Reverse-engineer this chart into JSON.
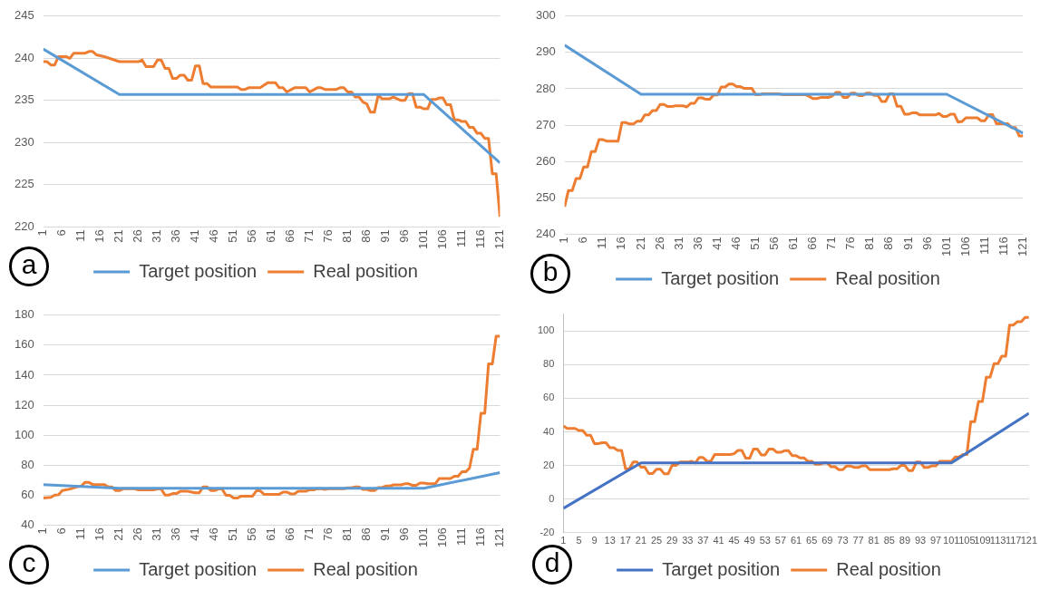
{
  "chart_data": [
    {
      "type": "line",
      "annotations": [
        "a"
      ],
      "legend": "bottom",
      "grid": "y",
      "xlim": [
        1,
        121
      ],
      "xticks": [
        1,
        6,
        11,
        16,
        21,
        26,
        31,
        36,
        41,
        46,
        51,
        56,
        61,
        66,
        71,
        76,
        81,
        86,
        91,
        96,
        101,
        106,
        111,
        116,
        121
      ],
      "ylim": [
        220,
        245
      ],
      "yticks": [
        220,
        225,
        230,
        235,
        240,
        245
      ],
      "series": [
        {
          "name": "Target position",
          "color": "#5b9bd5",
          "x": [
            1,
            21,
            101,
            121
          ],
          "values": [
            241.1,
            235.7,
            235.7,
            227.6
          ]
        },
        {
          "name": "Real position",
          "color": "#ed7d31",
          "x": [
            1,
            2,
            3,
            4,
            5,
            7,
            8,
            9,
            12,
            13,
            14,
            15,
            17,
            19,
            21,
            26,
            27,
            28,
            30,
            31,
            32,
            33,
            34,
            35,
            36,
            37,
            38,
            39,
            40,
            41,
            42,
            43,
            44,
            45,
            52,
            53,
            54,
            55,
            58,
            59,
            60,
            62,
            63,
            64,
            65,
            67,
            70,
            71,
            73,
            74,
            75,
            78,
            79,
            80,
            81,
            82,
            83,
            84,
            85,
            86,
            87,
            88,
            89,
            90,
            92,
            93,
            95,
            96,
            97,
            98,
            99,
            100,
            101,
            102,
            103,
            104,
            105,
            106,
            107,
            108,
            109,
            110,
            111,
            112,
            113,
            114,
            115,
            116,
            117,
            118,
            119,
            120,
            121
          ],
          "values": [
            239.6,
            239.6,
            239.2,
            239.2,
            240.2,
            240.2,
            240.0,
            240.6,
            240.6,
            240.8,
            240.8,
            240.4,
            240.2,
            239.9,
            239.6,
            239.6,
            239.8,
            239.0,
            239.0,
            239.8,
            239.8,
            238.8,
            238.8,
            237.6,
            237.6,
            238.0,
            238.0,
            237.4,
            237.4,
            239.1,
            239.1,
            237.0,
            237.0,
            236.6,
            236.6,
            236.3,
            236.3,
            236.5,
            236.5,
            236.8,
            237.1,
            237.1,
            236.5,
            236.5,
            236.0,
            236.5,
            236.5,
            236.0,
            236.5,
            236.5,
            236.3,
            236.3,
            236.5,
            236.5,
            236.0,
            236.0,
            235.4,
            235.4,
            234.8,
            234.6,
            233.6,
            233.6,
            235.6,
            235.2,
            235.2,
            235.4,
            235.0,
            235.0,
            235.8,
            235.8,
            234.2,
            234.2,
            234.0,
            234.0,
            235.1,
            235.1,
            235.3,
            235.3,
            234.5,
            234.5,
            232.7,
            232.7,
            232.5,
            232.5,
            231.8,
            231.8,
            231.1,
            231.1,
            230.5,
            230.5,
            226.3,
            226.3,
            221.2
          ]
        }
      ]
    },
    {
      "type": "line",
      "annotations": [
        "b"
      ],
      "legend": "bottom",
      "grid": "y",
      "xlim": [
        1,
        121
      ],
      "xticks": [
        1,
        6,
        11,
        16,
        21,
        26,
        31,
        36,
        41,
        46,
        51,
        56,
        61,
        66,
        71,
        76,
        81,
        86,
        91,
        96,
        101,
        106,
        111,
        116,
        121
      ],
      "ylim": [
        240,
        300
      ],
      "yticks": [
        240,
        250,
        260,
        270,
        280,
        290,
        300
      ],
      "series": [
        {
          "name": "Target position",
          "color": "#5b9bd5",
          "x": [
            1,
            21,
            101,
            121
          ],
          "values": [
            292,
            278.5,
            278.5,
            267.8
          ]
        },
        {
          "name": "Real position",
          "color": "#ed7d31",
          "x": [
            1,
            2,
            3,
            4,
            5,
            6,
            7,
            8,
            9,
            10,
            11,
            12,
            15,
            16,
            17,
            18,
            19,
            20,
            21,
            22,
            23,
            24,
            25,
            26,
            27,
            28,
            29,
            30,
            32,
            33,
            34,
            35,
            36,
            37,
            38,
            39,
            40,
            41,
            42,
            43,
            44,
            45,
            46,
            47,
            48,
            50,
            51,
            52,
            53,
            57,
            58,
            64,
            65,
            66,
            67,
            68,
            70,
            71,
            72,
            73,
            74,
            75,
            76,
            77,
            78,
            79,
            80,
            81,
            82,
            83,
            84,
            85,
            86,
            87,
            88,
            89,
            90,
            91,
            92,
            93,
            94,
            98,
            99,
            100,
            101,
            102,
            103,
            104,
            105,
            106,
            109,
            110,
            111,
            112,
            113,
            114,
            117,
            118,
            119,
            120,
            121
          ],
          "values": [
            247.5,
            252,
            252,
            255.3,
            255.3,
            258.5,
            258.5,
            262.7,
            262.7,
            266,
            266,
            265.6,
            265.6,
            270.7,
            270.7,
            270.3,
            270.3,
            271.1,
            271.1,
            272.8,
            272.8,
            274,
            274,
            275.7,
            275.7,
            275.1,
            275.1,
            275.3,
            275.3,
            275,
            276,
            276,
            277.5,
            277.5,
            277.1,
            277.1,
            278.3,
            278.3,
            280.5,
            280.5,
            281.3,
            281.3,
            280.6,
            280.6,
            280.1,
            280.1,
            278.4,
            278.4,
            278.6,
            278.6,
            278.4,
            278.4,
            277.9,
            277.3,
            277.3,
            277.6,
            277.6,
            278,
            279,
            279,
            277.6,
            277.6,
            278.8,
            278.8,
            278.1,
            278.1,
            278.8,
            278.8,
            278.2,
            278.2,
            276.5,
            276.5,
            278.6,
            278.6,
            275.2,
            275.2,
            273,
            273,
            273.4,
            273.4,
            272.8,
            272.8,
            273.2,
            272.4,
            272.4,
            273,
            273,
            270.8,
            271,
            272,
            272,
            271.2,
            271.2,
            272.9,
            272.9,
            270.4,
            270.4,
            269.3,
            269.3,
            267,
            267
          ]
        }
      ]
    },
    {
      "type": "line",
      "annotations": [
        "c"
      ],
      "legend": "bottom",
      "grid": "y",
      "xlim": [
        1,
        121
      ],
      "xticks": [
        1,
        6,
        11,
        16,
        21,
        26,
        31,
        36,
        41,
        46,
        51,
        56,
        61,
        66,
        71,
        76,
        81,
        86,
        91,
        96,
        101,
        106,
        111,
        116,
        121
      ],
      "ylim": [
        40,
        180
      ],
      "yticks": [
        40,
        60,
        80,
        100,
        120,
        140,
        160,
        180
      ],
      "series": [
        {
          "name": "Target position",
          "color": "#5b9bd5",
          "x": [
            1,
            21,
            101,
            121
          ],
          "values": [
            67,
            64.5,
            64.5,
            75
          ]
        },
        {
          "name": "Real position",
          "color": "#ed7d31",
          "x": [
            1,
            3,
            4,
            5,
            6,
            8,
            10,
            11,
            12,
            13,
            14,
            17,
            18,
            19,
            20,
            21,
            22,
            25,
            26,
            30,
            31,
            32,
            33,
            34,
            35,
            36,
            37,
            39,
            40,
            41,
            42,
            43,
            44,
            45,
            46,
            47,
            48,
            49,
            50,
            51,
            52,
            53,
            56,
            57,
            58,
            59,
            63,
            64,
            65,
            66,
            67,
            68,
            70,
            71,
            72,
            73,
            74,
            75,
            76,
            80,
            81,
            82,
            83,
            84,
            85,
            86,
            87,
            88,
            89,
            90,
            91,
            92,
            93,
            95,
            96,
            97,
            98,
            99,
            100,
            101,
            102,
            104,
            105,
            108,
            109,
            110,
            111,
            112,
            113,
            114,
            115,
            116,
            117,
            118,
            119,
            120,
            121
          ],
          "values": [
            58,
            58.5,
            60,
            60.2,
            63,
            64,
            65.5,
            66,
            68.5,
            68.5,
            67,
            67,
            65.5,
            65.5,
            63,
            63,
            64.2,
            64.2,
            63.5,
            63.5,
            64,
            64,
            60,
            60,
            61,
            61,
            62.5,
            62.5,
            62,
            61.5,
            61.5,
            65.5,
            65.5,
            63,
            63,
            64,
            64,
            59.8,
            59.8,
            58,
            58,
            59.3,
            59.3,
            62.8,
            62.8,
            60.5,
            60.5,
            62,
            62,
            60.8,
            60.8,
            62.5,
            62.5,
            63.5,
            63.5,
            64.2,
            64.2,
            63.8,
            64.2,
            64.2,
            64.8,
            64.8,
            65.5,
            65.5,
            63.8,
            63.8,
            63,
            63,
            65,
            65,
            66,
            66,
            66.8,
            66.8,
            67.5,
            67.5,
            66.5,
            66.5,
            68,
            68,
            67.5,
            67.5,
            71,
            71,
            72.5,
            72.5,
            75.5,
            75.5,
            78,
            90.5,
            90.5,
            114.5,
            114.5,
            147.5,
            147.5,
            166,
            166
          ]
        }
      ]
    },
    {
      "type": "line",
      "annotations": [
        "d"
      ],
      "legend": "bottom",
      "grid": "y",
      "xlim": [
        1,
        121
      ],
      "xticks": [
        1,
        5,
        9,
        13,
        17,
        21,
        25,
        29,
        33,
        37,
        41,
        45,
        49,
        53,
        57,
        61,
        65,
        69,
        73,
        77,
        81,
        85,
        89,
        93,
        97,
        101,
        105,
        109,
        113,
        117,
        121
      ],
      "ylim": [
        -20,
        110
      ],
      "yticks": [
        -20,
        0,
        20,
        40,
        60,
        80,
        100
      ],
      "series": [
        {
          "name": "Target position",
          "color": "#4472c4",
          "x": [
            1,
            21,
            101,
            121
          ],
          "values": [
            -5.5,
            21.5,
            21.5,
            51
          ]
        },
        {
          "name": "Real position",
          "color": "#ed7d31",
          "x": [
            1,
            2,
            4,
            5,
            6,
            7,
            8,
            9,
            10,
            11,
            12,
            13,
            14,
            15,
            16,
            17,
            18,
            19,
            20,
            21,
            22,
            23,
            24,
            25,
            26,
            27,
            28,
            29,
            30,
            31,
            33,
            34,
            35,
            36,
            37,
            38,
            39,
            40,
            44,
            45,
            46,
            47,
            48,
            49,
            50,
            51,
            52,
            53,
            54,
            55,
            56,
            57,
            58,
            59,
            60,
            61,
            62,
            63,
            64,
            65,
            66,
            67,
            68,
            69,
            70,
            71,
            72,
            73,
            74,
            75,
            76,
            77,
            78,
            79,
            80,
            85,
            86,
            87,
            88,
            89,
            90,
            91,
            92,
            93,
            94,
            95,
            96,
            97,
            98,
            101,
            102,
            103,
            104,
            105,
            106,
            107,
            108,
            109,
            110,
            111,
            112,
            113,
            114,
            115,
            116,
            117,
            118,
            119,
            120,
            121
          ],
          "values": [
            43.5,
            42,
            42,
            40.8,
            40.8,
            38,
            38,
            33,
            33,
            33.5,
            33.5,
            30.5,
            30.5,
            29,
            29,
            18,
            18,
            22,
            22,
            19,
            19,
            15.2,
            15.2,
            17.8,
            17.8,
            15,
            15,
            20,
            20,
            22,
            22,
            22.5,
            21.5,
            24.7,
            24.7,
            22.5,
            22.5,
            26.5,
            26.5,
            27,
            29,
            29,
            24.3,
            24.3,
            29.7,
            29.7,
            26.3,
            26.3,
            29.8,
            29.8,
            27.8,
            27.8,
            28.8,
            28.8,
            25.8,
            25.8,
            24.5,
            24.5,
            22.5,
            22.5,
            20.7,
            20.7,
            21.5,
            21.5,
            19.2,
            19.2,
            17.5,
            17.5,
            19.7,
            19.7,
            18.8,
            18.8,
            19.8,
            19.8,
            17.5,
            17.5,
            18,
            18,
            20,
            20,
            17,
            17,
            22,
            22,
            18.8,
            18.8,
            19.8,
            19.8,
            22.5,
            22.5,
            25,
            25,
            26.5,
            26.5,
            46,
            46,
            58,
            58,
            72.5,
            72.5,
            80.5,
            80.5,
            85,
            85,
            103.5,
            103.5,
            105.5,
            105.5,
            108,
            108
          ]
        }
      ]
    }
  ]
}
